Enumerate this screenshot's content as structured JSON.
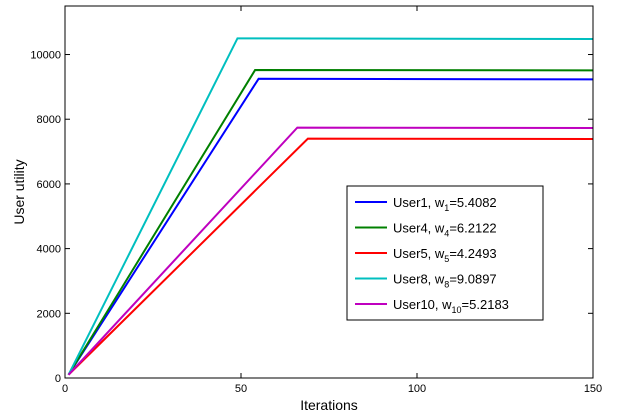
{
  "chart_data": {
    "type": "line",
    "xlabel": "Iterations",
    "ylabel": "User utility",
    "xlim": [
      0,
      150
    ],
    "ylim": [
      0,
      11500
    ],
    "xticks": [
      0,
      50,
      100,
      150
    ],
    "yticks": [
      0,
      2000,
      4000,
      6000,
      8000,
      10000
    ],
    "grid": false,
    "legend_position": "center-right",
    "series": [
      {
        "name": "User1, w1=5.4082",
        "label_main": "User1, w",
        "label_sub": "1",
        "label_tail": "=5.4082",
        "color": "#0000ff",
        "points": [
          [
            1,
            100
          ],
          [
            55,
            9250
          ],
          [
            150,
            9230
          ]
        ]
      },
      {
        "name": "User4, w4=6.2122",
        "label_main": "User4, w",
        "label_sub": "4",
        "label_tail": "=6.2122",
        "color": "#008000",
        "points": [
          [
            1,
            100
          ],
          [
            54,
            9520
          ],
          [
            150,
            9510
          ]
        ]
      },
      {
        "name": "User5, w5=4.2493",
        "label_main": "User5, w",
        "label_sub": "5",
        "label_tail": "=4.2493",
        "color": "#ff0000",
        "points": [
          [
            1,
            100
          ],
          [
            69,
            7400
          ],
          [
            150,
            7390
          ]
        ]
      },
      {
        "name": "User8, w8=9.0897",
        "label_main": "User8, w",
        "label_sub": "8",
        "label_tail": "=9.0897",
        "color": "#00bfbf",
        "points": [
          [
            1,
            100
          ],
          [
            49,
            10500
          ],
          [
            150,
            10480
          ]
        ]
      },
      {
        "name": "User10, w10=5.2183",
        "label_main": "User10, w",
        "label_sub": "10",
        "label_tail": "=5.2183",
        "color": "#bf00bf",
        "points": [
          [
            1,
            100
          ],
          [
            66,
            7740
          ],
          [
            150,
            7730
          ]
        ]
      }
    ]
  }
}
